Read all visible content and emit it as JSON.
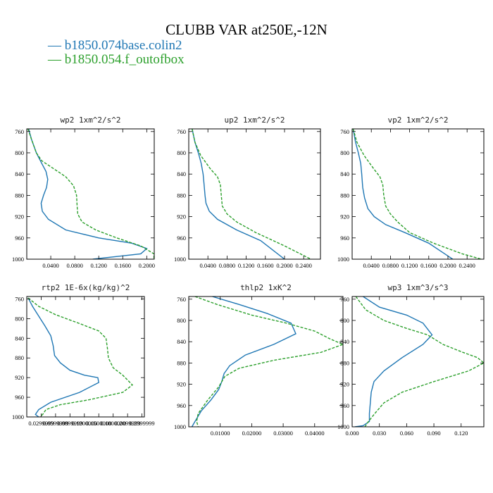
{
  "figure": {
    "title": "CLUBB VAR at250E,-12N",
    "legend": [
      {
        "label": "— b1850.074base.colin2",
        "color": "#1f77b4",
        "style": "solid"
      },
      {
        "label": "— b1850.054.f_outofbox",
        "color": "#2ca02c",
        "style": "dashed"
      }
    ]
  },
  "chart_data": [
    {
      "type": "line",
      "title": "wp2  1xm^2/s^2",
      "xlim": [
        0.0,
        0.2125
      ],
      "ylim": [
        1000,
        755
      ],
      "xticks": [
        0.04,
        0.08,
        0.12,
        0.16,
        0.2
      ],
      "xtick_labels": [
        "0.0400",
        "0.0800",
        "0.1200",
        "0.1600",
        "0.2000"
      ],
      "yticks": [
        760,
        800,
        840,
        880,
        920,
        960,
        1000
      ],
      "ytick_labels": [
        "760",
        "800",
        "840",
        "880",
        "920",
        "960",
        "1000"
      ],
      "series": [
        {
          "name": "b1850.074base.colin2",
          "color": "#1f77b4",
          "dash": "",
          "x": [
            0.003,
            0.008,
            0.016,
            0.025,
            0.032,
            0.035,
            0.033,
            0.028,
            0.024,
            0.026,
            0.036,
            0.065,
            0.12,
            0.175,
            0.2,
            0.19,
            0.11
          ],
          "y": [
            755,
            775,
            800,
            820,
            835,
            850,
            865,
            880,
            895,
            910,
            925,
            945,
            960,
            970,
            980,
            990,
            1000
          ]
        },
        {
          "name": "b1850.054.f_outofbox",
          "color": "#2ca02c",
          "dash": "4,2",
          "x": [
            0.002,
            0.008,
            0.016,
            0.025,
            0.045,
            0.065,
            0.078,
            0.083,
            0.084,
            0.085,
            0.092,
            0.115,
            0.15,
            0.19,
            0.212,
            0.212
          ],
          "y": [
            755,
            775,
            800,
            815,
            830,
            845,
            862,
            880,
            900,
            915,
            930,
            945,
            960,
            975,
            990,
            1000
          ]
        }
      ]
    },
    {
      "type": "line",
      "title": "up2  1xm^2/s^2",
      "xlim": [
        0.0,
        0.275
      ],
      "ylim": [
        1000,
        755
      ],
      "xticks": [
        0.04,
        0.08,
        0.12,
        0.16,
        0.2,
        0.24
      ],
      "xtick_labels": [
        "0.0400",
        "0.0800",
        "0.1200",
        "0.1600",
        "0.2000",
        "0.2400"
      ],
      "yticks": [
        760,
        800,
        840,
        880,
        920,
        960,
        1000
      ],
      "ytick_labels": [
        "760",
        "800",
        "840",
        "880",
        "920",
        "960",
        "1000"
      ],
      "series": [
        {
          "name": "b1850.074base.colin2",
          "color": "#1f77b4",
          "dash": "",
          "x": [
            0.007,
            0.013,
            0.02,
            0.026,
            0.03,
            0.032,
            0.034,
            0.036,
            0.043,
            0.06,
            0.1,
            0.15,
            0.2
          ],
          "y": [
            755,
            780,
            800,
            820,
            840,
            860,
            880,
            895,
            910,
            925,
            945,
            965,
            1000
          ]
        },
        {
          "name": "b1850.054.f_outofbox",
          "color": "#2ca02c",
          "dash": "4,2",
          "x": [
            0.007,
            0.013,
            0.025,
            0.045,
            0.06,
            0.066,
            0.068,
            0.07,
            0.08,
            0.1,
            0.14,
            0.2,
            0.255
          ],
          "y": [
            755,
            780,
            805,
            830,
            845,
            860,
            880,
            900,
            915,
            930,
            950,
            975,
            1000
          ]
        }
      ]
    },
    {
      "type": "line",
      "title": "vp2  1xm^2/s^2",
      "xlim": [
        0.0,
        0.275
      ],
      "ylim": [
        1000,
        755
      ],
      "xticks": [
        0.04,
        0.08,
        0.12,
        0.16,
        0.2,
        0.24
      ],
      "xtick_labels": [
        "0.0400",
        "0.0800",
        "0.1200",
        "0.1600",
        "0.2000",
        "0.2400"
      ],
      "yticks": [
        760,
        800,
        840,
        880,
        920,
        960,
        1000
      ],
      "ytick_labels": [
        "760",
        "800",
        "840",
        "880",
        "920",
        "960",
        "1000"
      ],
      "series": [
        {
          "name": "b1850.074base.colin2",
          "color": "#1f77b4",
          "dash": "",
          "x": [
            0.002,
            0.007,
            0.013,
            0.018,
            0.02,
            0.022,
            0.026,
            0.033,
            0.046,
            0.07,
            0.11,
            0.16,
            0.21
          ],
          "y": [
            755,
            780,
            800,
            820,
            840,
            865,
            885,
            905,
            920,
            935,
            950,
            970,
            1000
          ]
        },
        {
          "name": "b1850.054.f_outofbox",
          "color": "#2ca02c",
          "dash": "4,2",
          "x": [
            0.002,
            0.01,
            0.025,
            0.045,
            0.058,
            0.064,
            0.066,
            0.07,
            0.08,
            0.095,
            0.12,
            0.17,
            0.23,
            0.27
          ],
          "y": [
            755,
            780,
            805,
            830,
            845,
            860,
            880,
            900,
            915,
            930,
            950,
            970,
            990,
            1000
          ]
        }
      ]
    },
    {
      "type": "line",
      "title": "rtp2  1E-6x(kg/kg)^2",
      "xlim": [
        0.0,
        0.245
      ],
      "ylim": [
        1000,
        755
      ],
      "xticks": [
        0.03,
        0.06,
        0.09,
        0.12,
        0.15,
        0.18,
        0.21,
        0.24
      ],
      "xtick_labels": [
        "0.0299999",
        "0.0599999",
        "0.0899999",
        "0.1200000",
        "0.1500000",
        "0.1800000",
        "0.2099999",
        "0.2399999"
      ],
      "yticks": [
        760,
        800,
        840,
        880,
        920,
        960,
        1000
      ],
      "ytick_labels": [
        "760",
        "800",
        "840",
        "880",
        "920",
        "960",
        "1000"
      ],
      "series": [
        {
          "name": "b1850.074base.colin2",
          "color": "#1f77b4",
          "dash": "",
          "x": [
            0.003,
            0.012,
            0.025,
            0.038,
            0.05,
            0.055,
            0.058,
            0.07,
            0.09,
            0.12,
            0.148,
            0.15,
            0.11,
            0.05,
            0.025,
            0.018,
            0.025
          ],
          "y": [
            758,
            775,
            795,
            815,
            835,
            855,
            875,
            890,
            905,
            915,
            920,
            930,
            950,
            970,
            985,
            995,
            1000
          ]
        },
        {
          "name": "b1850.054.f_outofbox",
          "color": "#2ca02c",
          "dash": "4,2",
          "x": [
            0.003,
            0.025,
            0.06,
            0.11,
            0.15,
            0.165,
            0.168,
            0.17,
            0.18,
            0.2,
            0.22,
            0.2,
            0.13,
            0.07,
            0.04,
            0.033,
            0.028
          ],
          "y": [
            758,
            775,
            792,
            810,
            825,
            840,
            860,
            880,
            900,
            915,
            935,
            950,
            965,
            975,
            985,
            995,
            1000
          ]
        }
      ]
    },
    {
      "type": "line",
      "title": "thlp2  1xK^2",
      "xlim": [
        0.0,
        0.049
      ],
      "ylim": [
        1000,
        755
      ],
      "xticks": [
        0.01,
        0.02,
        0.03,
        0.04
      ],
      "xtick_labels": [
        "0.01000",
        "0.02000",
        "0.03000",
        "0.04000"
      ],
      "yticks": [
        760,
        800,
        840,
        880,
        920,
        960,
        1000
      ],
      "ytick_labels": [
        "760",
        "800",
        "840",
        "880",
        "920",
        "960",
        "1000"
      ],
      "series": [
        {
          "name": "b1850.074base.colin2",
          "color": "#1f77b4",
          "dash": "",
          "x": [
            0.0075,
            0.016,
            0.025,
            0.0325,
            0.034,
            0.027,
            0.018,
            0.013,
            0.0112,
            0.0105,
            0.0095,
            0.007,
            0.004,
            0.002,
            0.001
          ],
          "y": [
            755,
            770,
            787,
            805,
            825,
            845,
            865,
            885,
            900,
            915,
            930,
            950,
            970,
            990,
            1000
          ]
        },
        {
          "name": "b1850.054.f_outofbox",
          "color": "#2ca02c",
          "dash": "4,2",
          "x": [
            0.002,
            0.009,
            0.02,
            0.031,
            0.04,
            0.045,
            0.049,
            0.042,
            0.027,
            0.016,
            0.0115,
            0.0095,
            0.006,
            0.003,
            0.0025,
            0.003
          ],
          "y": [
            755,
            770,
            790,
            805,
            820,
            835,
            845,
            860,
            875,
            890,
            905,
            925,
            950,
            975,
            990,
            1000
          ]
        }
      ]
    },
    {
      "type": "line",
      "title": "wp3  1xm^3/s^3",
      "xlim": [
        0.0,
        0.145
      ],
      "ylim": [
        1000,
        755
      ],
      "xticks": [
        0.0,
        0.03,
        0.06,
        0.09,
        0.12
      ],
      "xtick_labels": [
        "0.000",
        "0.030",
        "0.060",
        "0.090",
        "0.120"
      ],
      "yticks": [
        760,
        800,
        840,
        880,
        920,
        960,
        1000
      ],
      "ytick_labels": [
        "760",
        "800",
        "840",
        "880",
        "920",
        "960",
        "1000"
      ],
      "series": [
        {
          "name": "b1850.074base.colin2",
          "color": "#1f77b4",
          "dash": "",
          "x": [
            0.012,
            0.03,
            0.06,
            0.078,
            0.088,
            0.078,
            0.055,
            0.035,
            0.024,
            0.021,
            0.02,
            0.019,
            0.019,
            0.012,
            0.003
          ],
          "y": [
            755,
            775,
            790,
            805,
            827,
            845,
            870,
            895,
            915,
            935,
            955,
            975,
            990,
            998,
            1000
          ]
        },
        {
          "name": "b1850.054.f_outofbox",
          "color": "#2ca02c",
          "dash": "4,2",
          "x": [
            0.004,
            0.015,
            0.035,
            0.06,
            0.083,
            0.1,
            0.122,
            0.138,
            0.145,
            0.128,
            0.09,
            0.055,
            0.035,
            0.025,
            0.018,
            0.014
          ],
          "y": [
            755,
            780,
            800,
            815,
            827,
            845,
            860,
            870,
            880,
            895,
            915,
            935,
            955,
            975,
            990,
            1000
          ]
        }
      ]
    }
  ]
}
